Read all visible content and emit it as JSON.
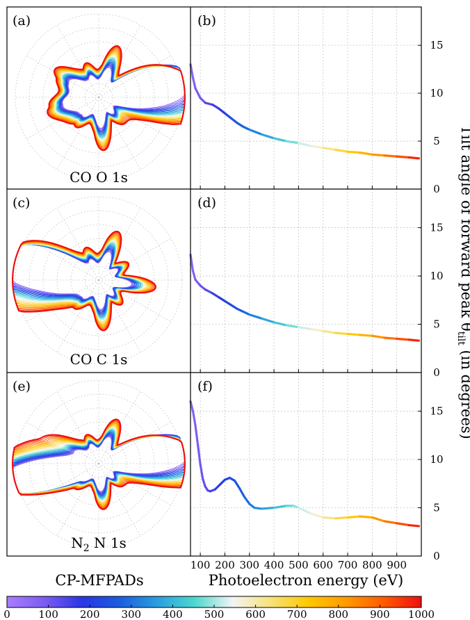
{
  "figure": {
    "left_caption": "CP-MFPADs",
    "xlabel": "Photoelectron energy (eV)",
    "ylabel": "Tilt angle of forward peak θ",
    "ylabel_sub": "tilt",
    "ylabel_suffix": " (in degrees)",
    "colorbar": {
      "ticks": [
        "0",
        "100",
        "200",
        "300",
        "400",
        "500",
        "600",
        "700",
        "800",
        "900",
        "1000"
      ],
      "colors": [
        "#a77fff",
        "#7b5cf2",
        "#2a35e6",
        "#1a5ee0",
        "#2a9ee0",
        "#4fd8d0",
        "#f4f4f4",
        "#f7e27a",
        "#ffc800",
        "#ff9a00",
        "#ff5a00",
        "#ee1010"
      ]
    }
  },
  "panels": [
    {
      "polar_label": "(a)",
      "line_label": "(b)",
      "molecule": "CO O 1s"
    },
    {
      "polar_label": "(c)",
      "line_label": "(d)",
      "molecule": "CO C 1s"
    },
    {
      "polar_label": "(e)",
      "line_label": "(f)",
      "molecule": "N",
      "molecule_sub": "2",
      "molecule_rest": " N 1s"
    }
  ],
  "chart_data": [
    {
      "type": "line",
      "panel": "(b)",
      "x": [
        60,
        70,
        80,
        100,
        120,
        150,
        175,
        200,
        225,
        250,
        275,
        300,
        350,
        400,
        450,
        500,
        550,
        600,
        650,
        700,
        750,
        800,
        850,
        900,
        950,
        990
      ],
      "y": [
        13.0,
        11.6,
        10.5,
        9.5,
        9.0,
        8.8,
        8.4,
        7.9,
        7.4,
        6.9,
        6.5,
        6.2,
        5.7,
        5.3,
        5.0,
        4.8,
        4.5,
        4.3,
        4.1,
        3.9,
        3.8,
        3.6,
        3.5,
        3.4,
        3.3,
        3.2
      ],
      "xlim": [
        60,
        1000
      ],
      "ylim": [
        0,
        19
      ],
      "xticks": [
        "100",
        "200",
        "300",
        "400",
        "500",
        "600",
        "700",
        "800",
        "900"
      ],
      "yticks": [
        "0",
        "5",
        "10",
        "15"
      ],
      "grid": true
    },
    {
      "type": "line",
      "panel": "(d)",
      "x": [
        60,
        70,
        80,
        100,
        120,
        150,
        175,
        200,
        225,
        250,
        275,
        300,
        350,
        400,
        450,
        500,
        550,
        600,
        650,
        700,
        750,
        800,
        850,
        900,
        950,
        990
      ],
      "y": [
        12.2,
        10.5,
        9.6,
        9.0,
        8.6,
        8.2,
        7.8,
        7.4,
        7.0,
        6.6,
        6.3,
        6.0,
        5.6,
        5.2,
        4.9,
        4.7,
        4.5,
        4.3,
        4.1,
        4.0,
        3.9,
        3.8,
        3.6,
        3.5,
        3.4,
        3.3
      ],
      "xlim": [
        60,
        1000
      ],
      "ylim": [
        0,
        19
      ],
      "xticks": [
        "100",
        "200",
        "300",
        "400",
        "500",
        "600",
        "700",
        "800",
        "900"
      ],
      "yticks": [
        "0",
        "5",
        "10",
        "15"
      ],
      "grid": true
    },
    {
      "type": "line",
      "panel": "(f)",
      "x": [
        60,
        70,
        80,
        90,
        100,
        110,
        120,
        130,
        140,
        160,
        180,
        200,
        220,
        240,
        260,
        280,
        300,
        320,
        350,
        400,
        450,
        480,
        500,
        550,
        600,
        650,
        700,
        750,
        800,
        850,
        900,
        950,
        990
      ],
      "y": [
        16.0,
        15.0,
        13.5,
        11.5,
        9.5,
        8.0,
        7.2,
        6.8,
        6.7,
        6.9,
        7.4,
        7.9,
        8.1,
        7.8,
        7.0,
        6.1,
        5.4,
        5.0,
        4.9,
        5.0,
        5.2,
        5.2,
        5.0,
        4.4,
        4.0,
        3.9,
        4.0,
        4.1,
        4.0,
        3.6,
        3.4,
        3.2,
        3.1
      ],
      "xlim": [
        60,
        1000
      ],
      "ylim": [
        0,
        19
      ],
      "xticks": [
        "100",
        "200",
        "300",
        "400",
        "500",
        "600",
        "700",
        "800",
        "900"
      ],
      "yticks": [
        "0",
        "5",
        "10",
        "15"
      ],
      "grid": true
    }
  ]
}
